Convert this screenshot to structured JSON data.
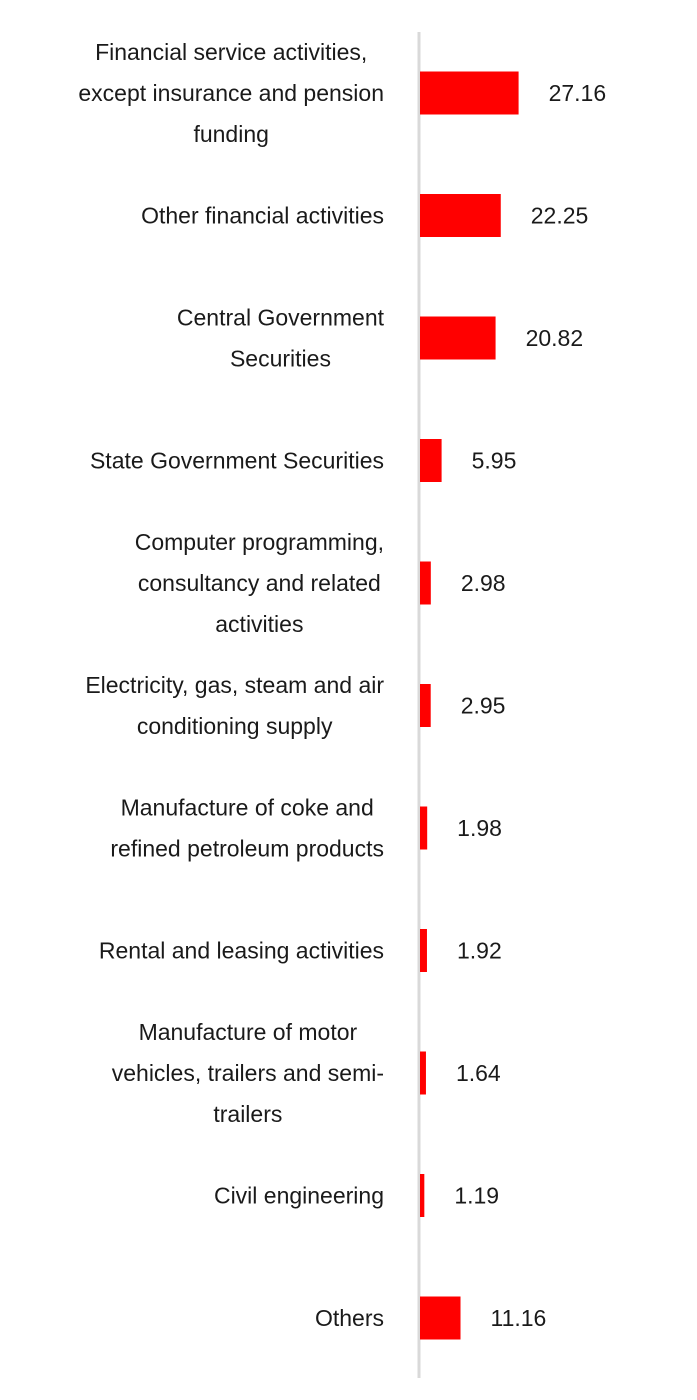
{
  "chart_data": {
    "type": "bar",
    "orientation": "horizontal",
    "title": "",
    "xlabel": "",
    "ylabel": "",
    "grid": false,
    "legend": "none",
    "bar_color": "#ff0000",
    "axis_color": "#d9d9d9",
    "categories": [
      [
        "Financial service activities,",
        "except insurance and pension",
        "funding"
      ],
      [
        "Other financial activities"
      ],
      [
        "Central Government",
        "Securities"
      ],
      [
        "State Government Securities"
      ],
      [
        "Computer programming,",
        "consultancy and related",
        "activities"
      ],
      [
        "Electricity, gas, steam and air",
        "conditioning supply"
      ],
      [
        "Manufacture of coke and",
        "refined petroleum products"
      ],
      [
        "Rental and leasing activities"
      ],
      [
        "Manufacture of motor",
        "vehicles, trailers and semi-",
        "trailers"
      ],
      [
        "Civil engineering"
      ],
      [
        "Others"
      ]
    ],
    "values": [
      27.16,
      22.25,
      20.82,
      5.95,
      2.98,
      2.95,
      1.98,
      1.92,
      1.64,
      1.19,
      11.16
    ],
    "value_labels": [
      "27.16",
      "22.25",
      "20.82",
      "5.95",
      "2.98",
      "2.95",
      "1.98",
      "1.92",
      "1.64",
      "1.19",
      "11.16"
    ]
  }
}
